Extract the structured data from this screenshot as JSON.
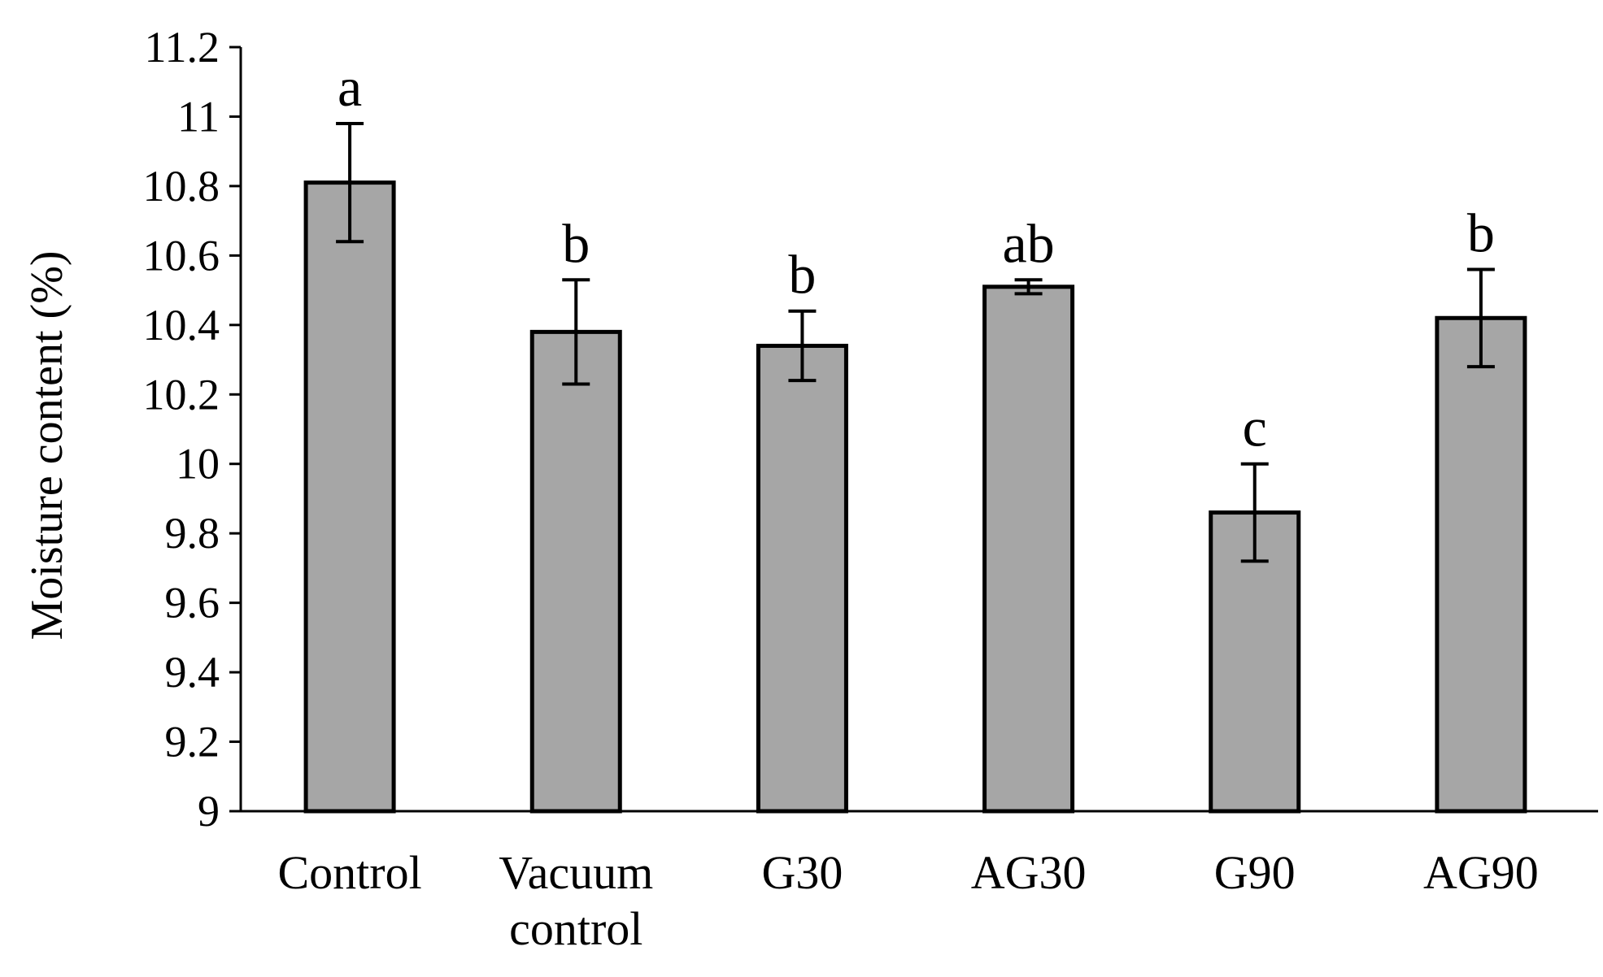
{
  "chart_data": {
    "type": "bar",
    "title": "",
    "xlabel": "",
    "ylabel": "Moisture content (%)",
    "ylim": [
      9,
      11.2
    ],
    "yticks": [
      9,
      9.2,
      9.4,
      9.6,
      9.8,
      10,
      10.2,
      10.4,
      10.6,
      10.8,
      11,
      11.2
    ],
    "ytick_labels": [
      "9",
      "9.2",
      "9.4",
      "9.6",
      "9.8",
      "10",
      "10.2",
      "10.4",
      "10.6",
      "10.8",
      "11",
      "11.2"
    ],
    "grid": false,
    "categories": [
      [
        "Control"
      ],
      [
        "Vacuum",
        "control"
      ],
      [
        "G30"
      ],
      [
        "AG30"
      ],
      [
        "G90"
      ],
      [
        "AG90"
      ]
    ],
    "values": [
      10.81,
      10.38,
      10.34,
      10.51,
      9.86,
      10.42
    ],
    "errors": [
      0.17,
      0.15,
      0.1,
      0.02,
      0.14,
      0.14
    ],
    "significance_letters": [
      "a",
      "b",
      "b",
      "ab",
      "c",
      "b"
    ],
    "bar_color": "#a6a6a6",
    "edge_color": "#000000"
  }
}
